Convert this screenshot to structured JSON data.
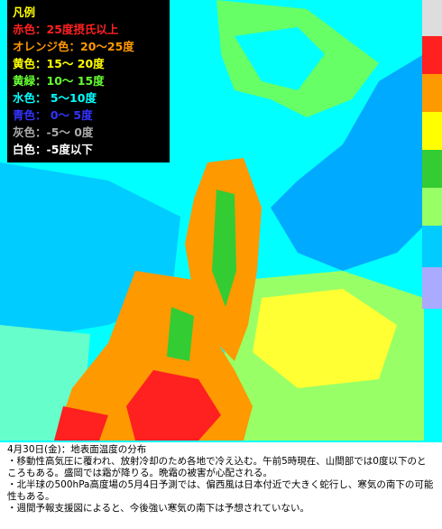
{
  "legend": {
    "title": "凡例",
    "items": [
      {
        "text": "赤色：25度摂氏以上",
        "color": "#ff2020"
      },
      {
        "text": "オレンジ色：20～25度",
        "color": "#ff9900"
      },
      {
        "text": "黄色：15～ 20度",
        "color": "#ffff00"
      },
      {
        "text": "黄緑：10～ 15度",
        "color": "#66ff33"
      },
      {
        "text": "水色： 5～10度",
        "color": "#00ffff"
      },
      {
        "text": "青色： 0～ 5度",
        "color": "#3333ff"
      },
      {
        "text": "灰色：-5～ 0度",
        "color": "#aaaaaa"
      },
      {
        "text": "白色：-5度以下",
        "color": "#ffffff"
      }
    ]
  },
  "caption": {
    "title": "4月30日(金)：地表面温度の分布",
    "bullets": [
      "・移動性高気圧に覆われ、放射冷却のため各地で冷え込む。午前5時現在、山間部では0度以下のところもある。盛岡では霜が降りる。晩霜の被害が心配される。",
      "・北半球の500hPa高度場の5月4日予測では、偏西風は日本付近で大きく蛇行し、寒気の南下の可能性もある。",
      "・週間予報支援図によると、今後強い寒気の南下は予想されていない。"
    ]
  }
}
